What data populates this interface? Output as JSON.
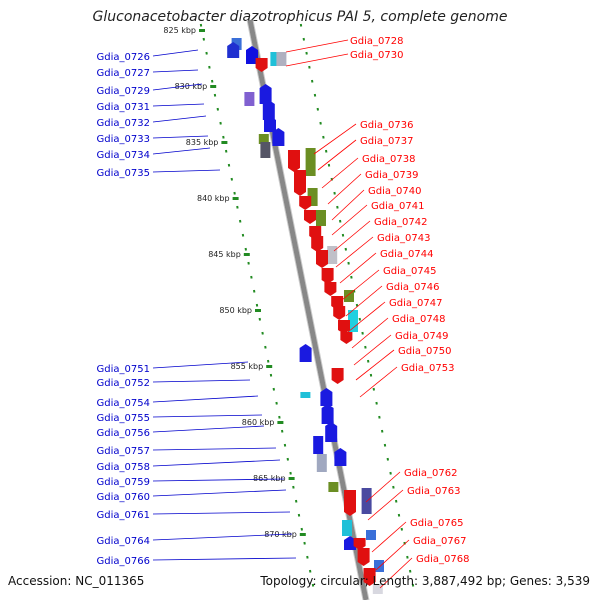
{
  "title": "Gluconacetobacter diazotrophicus PAI 5, complete genome",
  "accession_text": "Accession: NC_011365",
  "summary_text": "Topology: circular; Length: 3,887,492 bp; Genes: 3,539",
  "colors": {
    "forward_label": "#0000cc",
    "reverse_label": "#ff0000",
    "backbone": "#888888",
    "tick": "#228b22"
  },
  "scale_ticks": [
    "825 kbp",
    "830 kbp",
    "835 kbp",
    "840 kbp",
    "845 kbp",
    "850 kbp",
    "855 kbp",
    "860 kbp",
    "865 kbp",
    "870 kbp"
  ],
  "left_labels": [
    "Gdia_0726",
    "Gdia_0727",
    "Gdia_0729",
    "Gdia_0731",
    "Gdia_0732",
    "Gdia_0733",
    "Gdia_0734",
    "Gdia_0735",
    "Gdia_0751",
    "Gdia_0752",
    "Gdia_0754",
    "Gdia_0755",
    "Gdia_0756",
    "Gdia_0757",
    "Gdia_0758",
    "Gdia_0759",
    "Gdia_0760",
    "Gdia_0761",
    "Gdia_0764",
    "Gdia_0766"
  ],
  "right_labels": [
    "Gdia_0728",
    "Gdia_0730",
    "Gdia_0736",
    "Gdia_0737",
    "Gdia_0738",
    "Gdia_0739",
    "Gdia_0740",
    "Gdia_0741",
    "Gdia_0742",
    "Gdia_0743",
    "Gdia_0744",
    "Gdia_0745",
    "Gdia_0746",
    "Gdia_0747",
    "Gdia_0748",
    "Gdia_0749",
    "Gdia_0750",
    "Gdia_0753",
    "Gdia_0762",
    "Gdia_0763",
    "Gdia_0765",
    "Gdia_0767",
    "Gdia_0768"
  ]
}
